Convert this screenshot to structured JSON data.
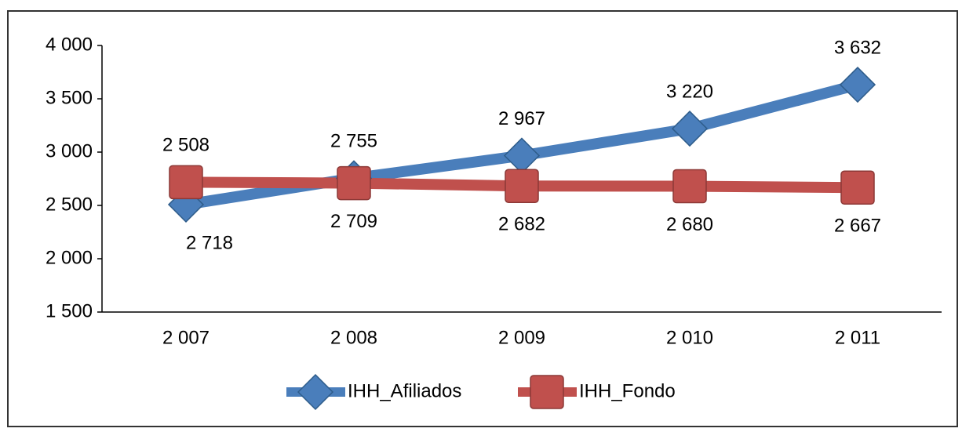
{
  "chart_data": {
    "type": "line",
    "categories": [
      "2 007",
      "2 008",
      "2 009",
      "2 010",
      "2 011"
    ],
    "series": [
      {
        "name": "IHH_Afiliados",
        "color": "#4a7ebb",
        "values": [
          2508,
          2755,
          2967,
          3220,
          3632
        ],
        "value_labels": [
          "2 508",
          "2 755",
          "2 967",
          "3 220",
          "3 632"
        ]
      },
      {
        "name": "IHH_Fondo",
        "color": "#c0504d",
        "values": [
          2718,
          2709,
          2682,
          2680,
          2667
        ],
        "value_labels": [
          "2 718",
          "2 709",
          "2 682",
          "2 680",
          "2 667"
        ]
      }
    ],
    "ylim": [
      1500,
      4000
    ],
    "yticks": [
      {
        "value": 1500,
        "label": "1 500"
      },
      {
        "value": 2000,
        "label": "2 000"
      },
      {
        "value": 2500,
        "label": "2 500"
      },
      {
        "value": 3000,
        "label": "3 000"
      },
      {
        "value": 3500,
        "label": "3 500"
      },
      {
        "value": 4000,
        "label": "4 000"
      }
    ],
    "legend": "bottom"
  }
}
